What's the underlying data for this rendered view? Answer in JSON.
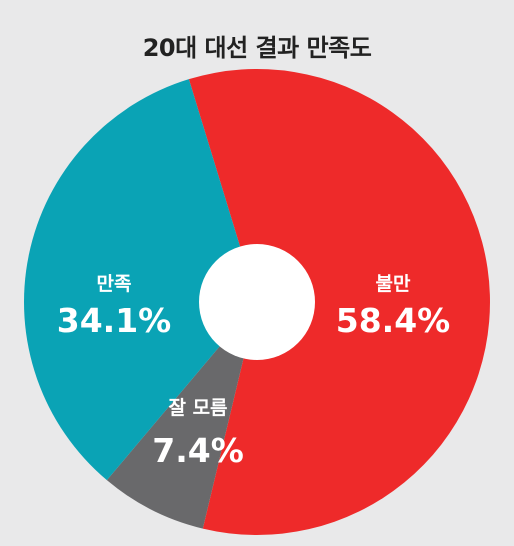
{
  "chart_data": {
    "type": "pie",
    "title": "20대 대선 결과 만족도",
    "slices": [
      {
        "label": "불만",
        "value": 58.4,
        "value_label": "58.4%",
        "color": "#ee2a2a"
      },
      {
        "label": "잘 모름",
        "value": 7.4,
        "value_label": "7.4%",
        "color": "#69696b"
      },
      {
        "label": "만족",
        "value": 34.1,
        "value_label": "34.1%",
        "color": "#0aa3b5"
      }
    ],
    "hole_color": "#ffffff",
    "background": "#e9e9ea"
  }
}
